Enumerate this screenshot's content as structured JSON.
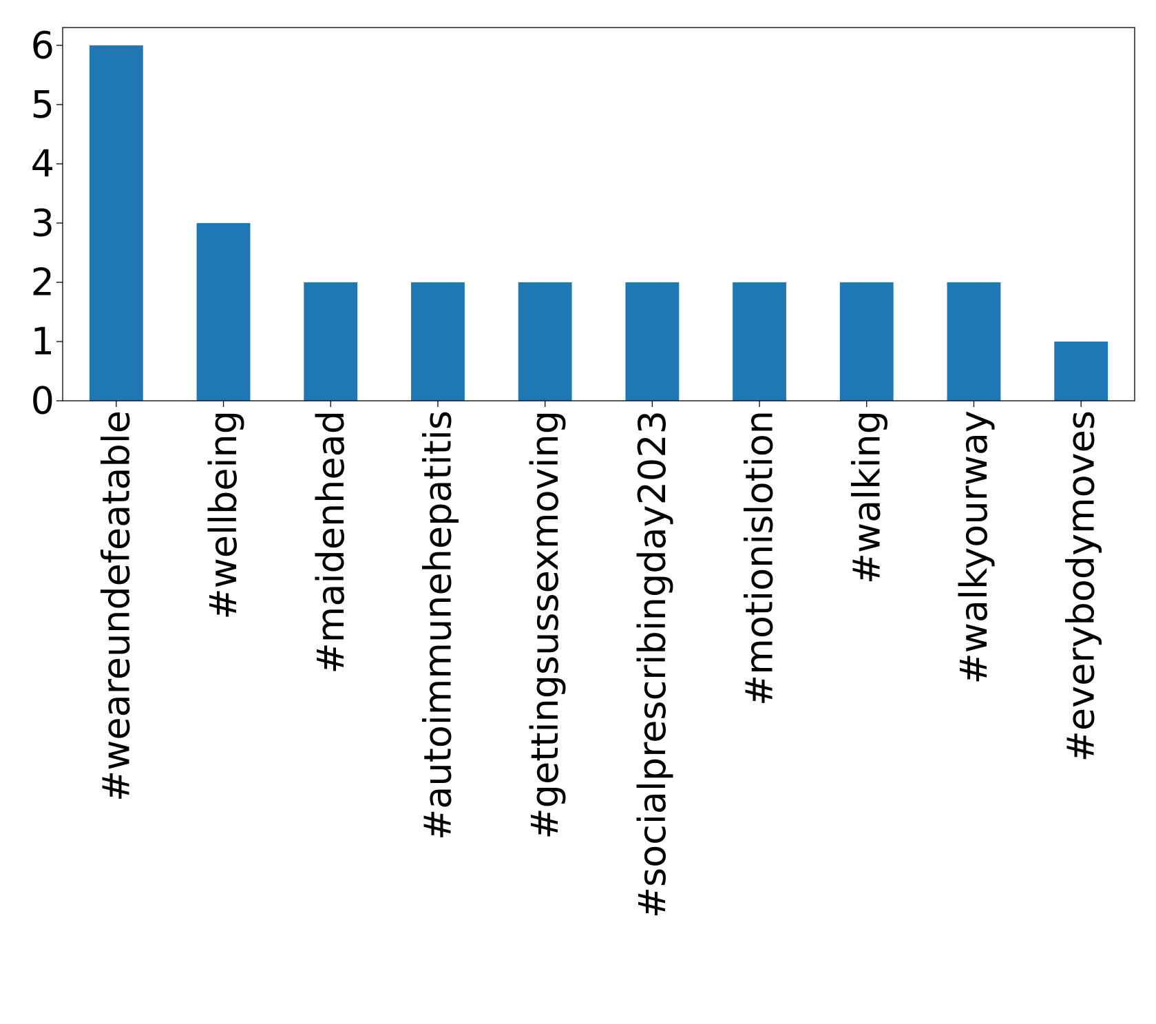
{
  "chart_data": {
    "type": "bar",
    "title": "",
    "xlabel": "",
    "ylabel": "",
    "categories": [
      "#weareundefeatable",
      "#wellbeing",
      "#maidenhead",
      "#autoimmunehepatitis",
      "#gettingsussexmoving",
      "#socialprescribingday2023",
      "#motionislotion",
      "#walking",
      "#walkyourway",
      "#everybodymoves"
    ],
    "values": [
      6,
      3,
      2,
      2,
      2,
      2,
      2,
      2,
      2,
      1
    ],
    "ylim": [
      0,
      6.3
    ],
    "yticks": [
      "0",
      "1",
      "2",
      "3",
      "4",
      "5",
      "6"
    ],
    "grid": false,
    "legend": "none",
    "colors": {
      "bar": "#1f77b4"
    }
  }
}
